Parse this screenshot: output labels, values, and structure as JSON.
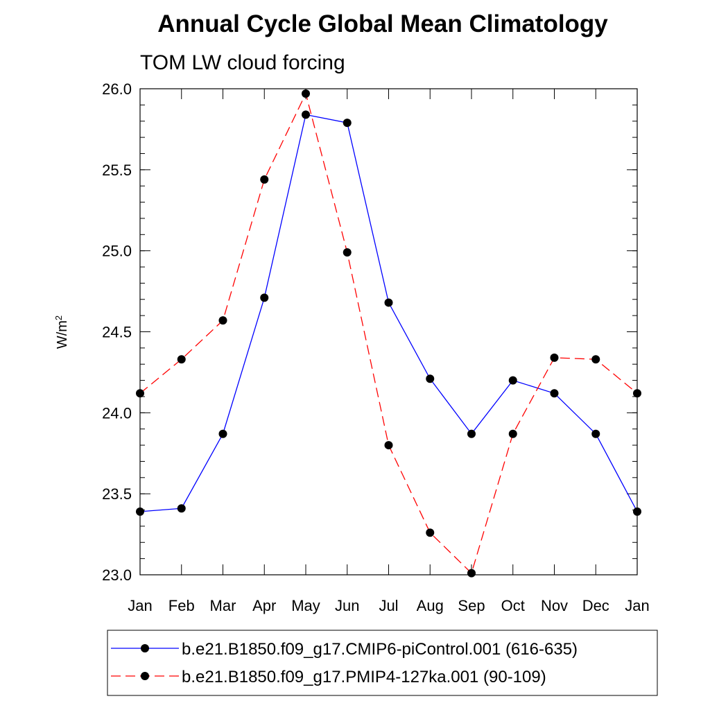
{
  "chart_data": {
    "type": "line",
    "title": "Annual Cycle Global Mean Climatology",
    "subtitle": "TOM LW cloud forcing",
    "ylabel": "W/m",
    "ylabel_superscript": "2",
    "xlabel": "",
    "categories": [
      "Jan",
      "Feb",
      "Mar",
      "Apr",
      "May",
      "Jun",
      "Jul",
      "Aug",
      "Sep",
      "Oct",
      "Nov",
      "Dec",
      "Jan"
    ],
    "ylim": [
      23.0,
      26.0
    ],
    "yticks": [
      "23.0",
      "23.5",
      "24.0",
      "24.5",
      "25.0",
      "25.5",
      "26.0"
    ],
    "grid": false,
    "legend_position": "bottom",
    "series": [
      {
        "name": "b.e21.B1850.f09_g17.CMIP6-piControl.001 (616-635)",
        "color": "#0000ff",
        "line_style": "solid",
        "marker": "filled-circle",
        "values": [
          23.39,
          23.41,
          23.87,
          24.71,
          25.84,
          25.79,
          24.68,
          24.21,
          23.87,
          24.2,
          24.12,
          23.87,
          23.39
        ]
      },
      {
        "name": "b.e21.B1850.f09_g17.PMIP4-127ka.001 (90-109)",
        "color": "#ff0000",
        "line_style": "dashed",
        "marker": "filled-circle",
        "values": [
          24.12,
          24.33,
          24.57,
          25.44,
          25.97,
          24.99,
          23.8,
          23.26,
          23.01,
          23.87,
          24.34,
          24.33,
          24.12
        ]
      }
    ]
  }
}
